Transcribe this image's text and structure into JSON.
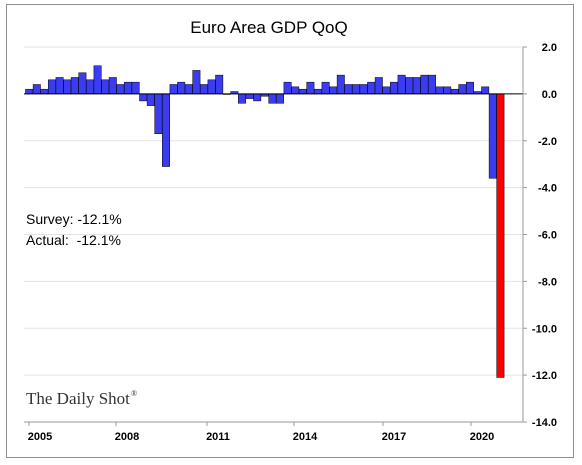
{
  "chart_data": {
    "type": "bar",
    "title": "Euro Area GDP QoQ",
    "x_tick_labels": [
      "2005",
      "2008",
      "2011",
      "2014",
      "2017",
      "2020"
    ],
    "y_tick_labels": [
      "2.0",
      "0.0",
      "-2.0",
      "-4.0",
      "-6.0",
      "-8.0",
      "-10.0",
      "-12.0",
      "-14.0"
    ],
    "ylim": [
      -14,
      2
    ],
    "y_axis_position": "right",
    "grid": "horizontal",
    "annotations": [
      "Survey: -12.1%",
      "Actual:  -12.1%"
    ],
    "brand": "The Daily Shot",
    "brand_mark": "®",
    "series": [
      {
        "color": "#3b3bf0",
        "values": [
          0.2,
          0.4,
          0.2,
          0.6,
          0.7,
          0.6,
          0.7,
          0.9,
          0.6,
          1.2,
          0.6,
          0.7,
          0.4,
          0.5,
          0.5,
          -0.3,
          -0.5,
          -1.7,
          -3.1,
          0.4,
          0.5,
          0.4,
          1.0,
          0.4,
          0.6,
          0.8,
          0.0,
          0.1,
          -0.4,
          -0.2,
          -0.3,
          -0.1,
          -0.4,
          -0.4,
          0.5,
          0.3,
          0.2,
          0.5,
          0.2,
          0.5,
          0.3,
          0.8,
          0.4,
          0.4,
          0.4,
          0.5,
          0.7,
          0.3,
          0.5,
          0.8,
          0.7,
          0.7,
          0.8,
          0.8,
          0.3,
          0.3,
          0.2,
          0.4,
          0.5,
          0.1,
          0.3,
          -3.6
        ]
      },
      {
        "color": "#ff0000",
        "values": [
          -12.1
        ]
      }
    ]
  }
}
